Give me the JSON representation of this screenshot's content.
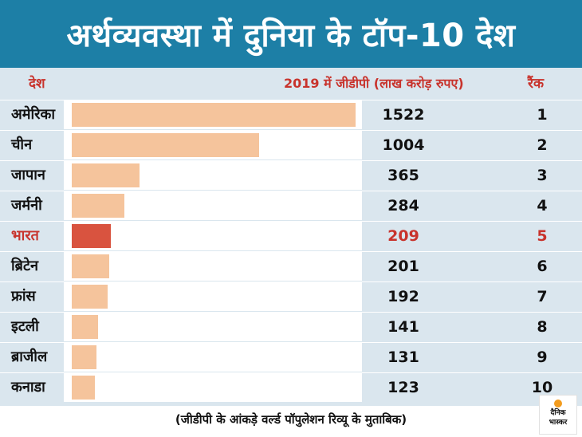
{
  "header": {
    "title": "अर्थव्यवस्था में दुनिया के टॉप-10 देश"
  },
  "columns": {
    "country": "देश",
    "gdp": "2019 में जीडीपी (लाख करोड़ रुपए)",
    "rank": "रैंक"
  },
  "chart_data": {
    "type": "bar",
    "orientation": "horizontal",
    "title": "अर्थव्यवस्था में दुनिया के टॉप-10 देश",
    "xlabel": "2019 में जीडीपी (लाख करोड़ रुपए)",
    "ylabel": "देश",
    "xlim": [
      0,
      1522
    ],
    "highlight_index": 4,
    "categories": [
      "अमेरिका",
      "चीन",
      "जापान",
      "जर्मनी",
      "भारत",
      "ब्रिटेन",
      "फ्रांस",
      "इटली",
      "ब्राजील",
      "कनाडा"
    ],
    "values": [
      1522,
      1004,
      365,
      284,
      209,
      201,
      192,
      141,
      131,
      123
    ],
    "ranks": [
      "1",
      "2",
      "3",
      "4",
      "5",
      "6",
      "7",
      "8",
      "9",
      "10"
    ],
    "colors": {
      "bar": "#f5c49c",
      "highlight": "#d9533f"
    }
  },
  "footer": {
    "note": "(जीडीपी के आंकड़े वर्ल्ड पॉपुलेशन रिव्यू के मुताबिक)",
    "logo_line1": "दैनिक",
    "logo_line2": "भास्कर"
  },
  "colors": {
    "title_bg": "#1d7fa6",
    "table_bg": "#dae6ee",
    "header_text": "#c8332c"
  }
}
